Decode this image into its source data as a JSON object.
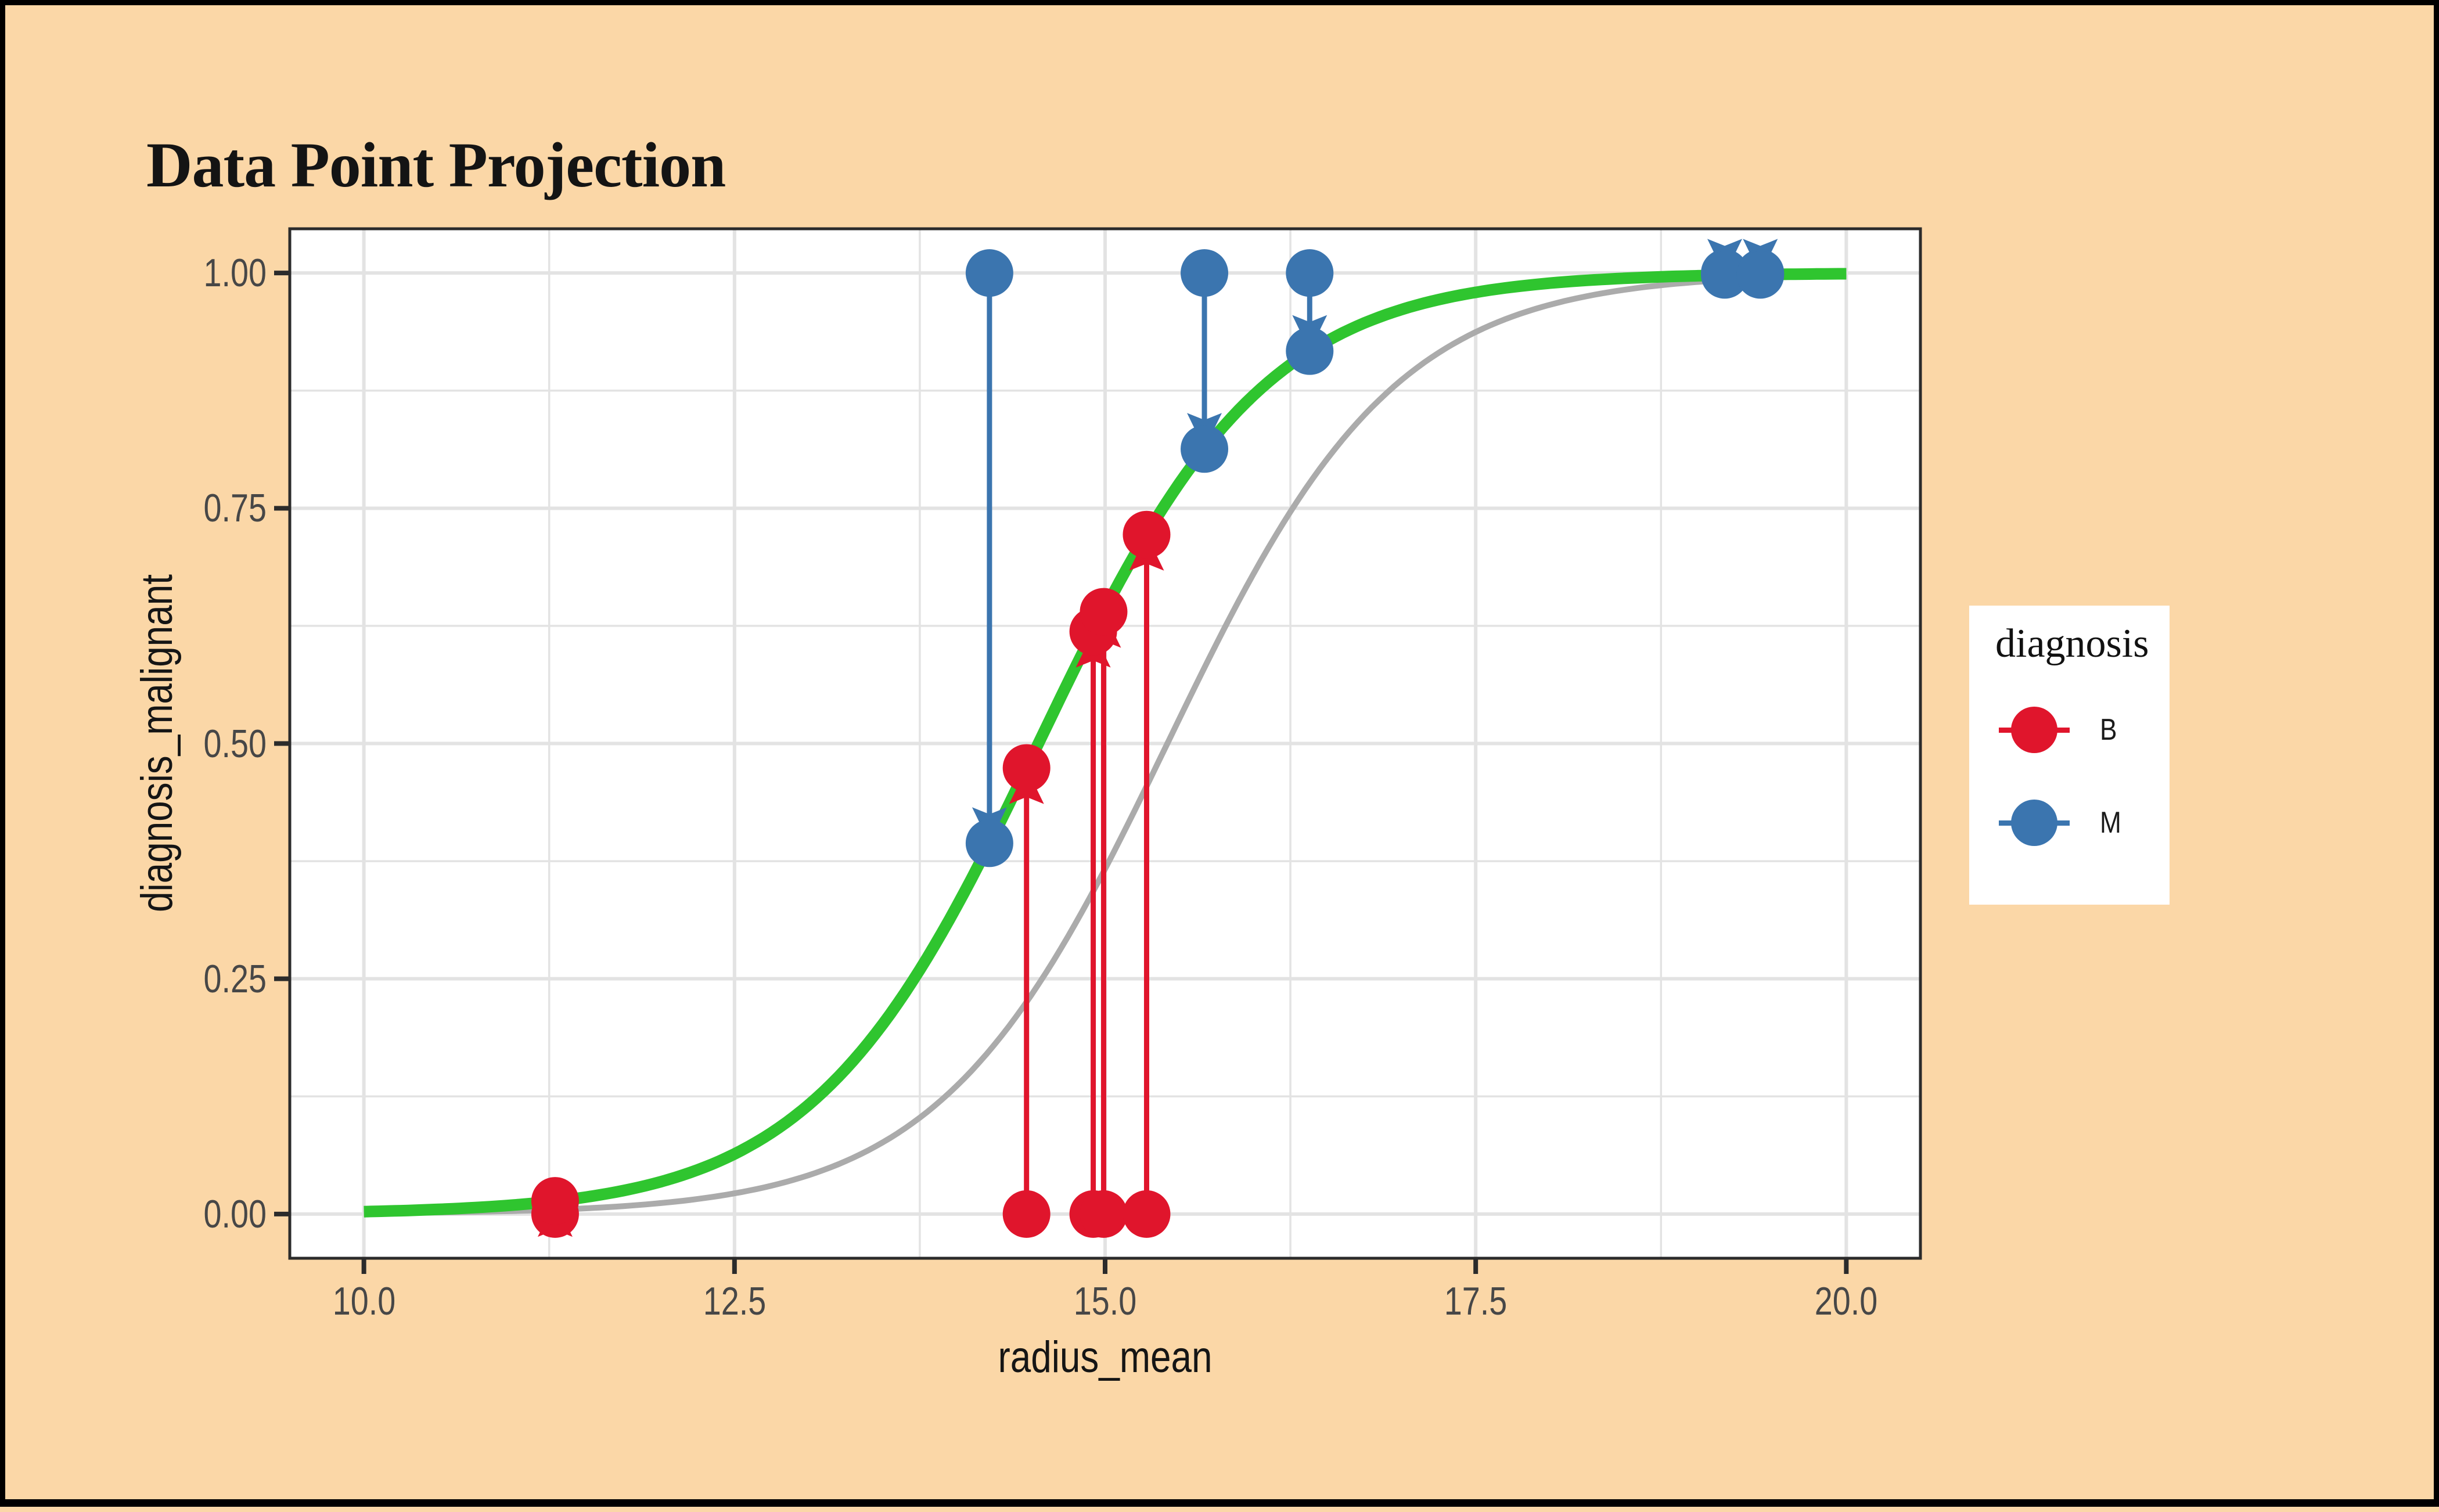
{
  "chart_data": {
    "type": "scatter",
    "title": "Data Point Projection",
    "xlabel": "radius_mean",
    "ylabel": "diagnosis_malignant",
    "xlim": [
      9.5,
      20.5
    ],
    "ylim": [
      -0.047,
      1.047
    ],
    "grid": true,
    "legend_position": "right",
    "x_ticks": {
      "values": [
        10.0,
        12.5,
        15.0,
        17.5,
        20.0
      ],
      "labels": [
        "10.0",
        "12.5",
        "15.0",
        "17.5",
        "20.0"
      ]
    },
    "y_ticks": {
      "values": [
        0.0,
        0.25,
        0.5,
        0.75,
        1.0
      ],
      "labels": [
        "0.00",
        "0.25",
        "0.50",
        "0.75",
        "1.00"
      ]
    },
    "x_minor": [
      11.25,
      13.75,
      16.25,
      18.75
    ],
    "y_minor": [
      0.125,
      0.375,
      0.625,
      0.875
    ],
    "curves": [
      {
        "name": "reference-logistic",
        "color": "#ABABAB",
        "stroke_width": 10,
        "logistic": {
          "k": 1.3,
          "x0": 15.42
        },
        "domain": [
          10,
          20
        ]
      },
      {
        "name": "fitted-logistic",
        "color": "#2FC52F",
        "stroke_width": 20,
        "logistic": {
          "k": 1.31,
          "x0": 14.55
        },
        "domain": [
          10,
          20
        ]
      }
    ],
    "series": [
      {
        "name": "B",
        "color": "#E0152C",
        "observed_y": 0,
        "points": [
          {
            "x": 11.29,
            "projected_y": 0.014
          },
          {
            "x": 14.47,
            "projected_y": 0.474
          },
          {
            "x": 14.92,
            "projected_y": 0.619
          },
          {
            "x": 14.99,
            "projected_y": 0.64
          },
          {
            "x": 15.28,
            "projected_y": 0.722
          }
        ]
      },
      {
        "name": "M",
        "color": "#3B75AF",
        "observed_y": 1,
        "points": [
          {
            "x": 14.22,
            "projected_y": 0.394
          },
          {
            "x": 15.67,
            "projected_y": 0.813
          },
          {
            "x": 16.38,
            "projected_y": 0.917
          },
          {
            "x": 19.18,
            "projected_y": 0.998
          },
          {
            "x": 19.42,
            "projected_y": 0.998
          }
        ]
      }
    ],
    "legend": {
      "title": "diagnosis",
      "entries": [
        {
          "label": "B",
          "color": "#E0152C"
        },
        {
          "label": "M",
          "color": "#3B75AF"
        }
      ]
    }
  }
}
